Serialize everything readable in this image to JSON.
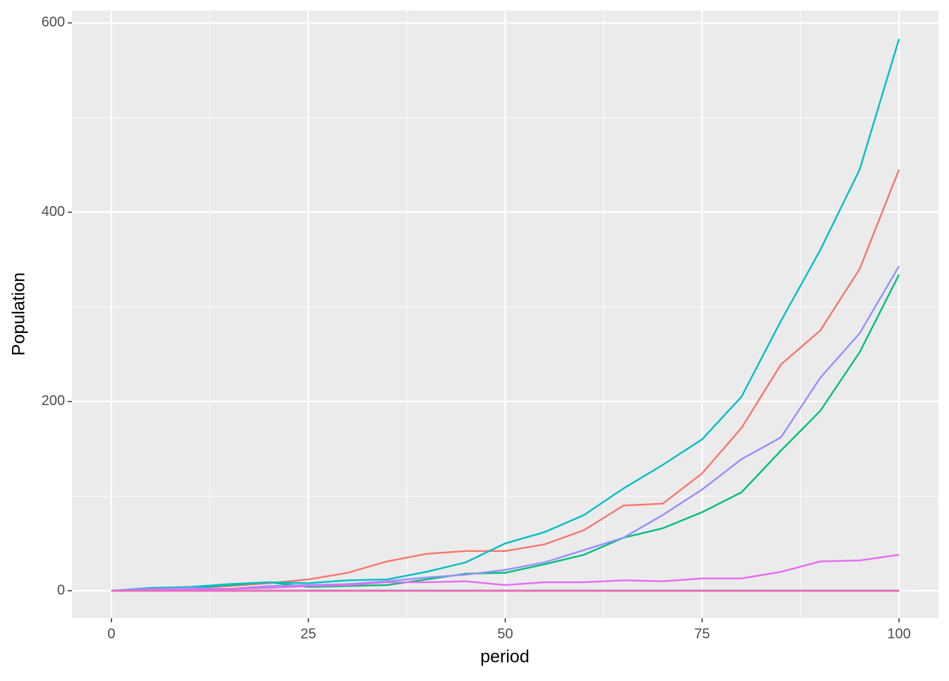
{
  "chart_data": {
    "type": "line",
    "x_label": "period",
    "y_label": "Population",
    "x": [
      0,
      5,
      10,
      15,
      20,
      25,
      30,
      35,
      40,
      45,
      50,
      55,
      60,
      65,
      70,
      75,
      80,
      85,
      90,
      95,
      100
    ],
    "series": [
      {
        "color": "#F8766D",
        "values": [
          0,
          2,
          3,
          5,
          8,
          12,
          19,
          31,
          39,
          42,
          42,
          49,
          64,
          90,
          92,
          124,
          172,
          239,
          275,
          340,
          445
        ]
      },
      {
        "color": "#D89000",
        "values": [
          0,
          0,
          0,
          0,
          0,
          0,
          0,
          0,
          0,
          0,
          0,
          0,
          0,
          0,
          0,
          0,
          0,
          0,
          0,
          0,
          0
        ]
      },
      {
        "color": "#A3A500",
        "values": [
          0,
          0,
          0,
          0,
          0,
          0,
          0,
          0,
          0,
          0,
          0,
          0,
          0,
          0,
          0,
          0,
          0,
          0,
          0,
          0,
          0
        ]
      },
      {
        "color": "#39B600",
        "values": [
          0,
          0,
          0,
          0,
          0,
          0,
          0,
          0,
          0,
          0,
          0,
          0,
          0,
          0,
          0,
          0,
          0,
          0,
          0,
          0,
          0
        ]
      },
      {
        "color": "#00BF7D",
        "values": [
          0,
          2,
          3,
          6,
          9,
          4,
          5,
          6,
          12,
          18,
          19,
          28,
          38,
          56,
          66,
          83,
          104,
          148,
          190,
          252,
          334
        ]
      },
      {
        "color": "#00BFC4",
        "values": [
          0,
          3,
          4,
          7,
          9,
          8,
          11,
          12,
          20,
          30,
          50,
          62,
          80,
          108,
          133,
          160,
          205,
          285,
          360,
          445,
          583
        ]
      },
      {
        "color": "#00B0F6",
        "values": [
          0,
          0,
          0,
          0,
          0,
          0,
          0,
          0,
          0,
          0,
          0,
          0,
          0,
          0,
          0,
          0,
          0,
          0,
          0,
          0,
          0
        ]
      },
      {
        "color": "#9590FF",
        "values": [
          0,
          2,
          3,
          2,
          5,
          6,
          7,
          10,
          14,
          17,
          22,
          30,
          43,
          56,
          80,
          107,
          139,
          162,
          225,
          272,
          343
        ]
      },
      {
        "color": "#E76BF3",
        "values": [
          0,
          1,
          1,
          2,
          3,
          5,
          6,
          9,
          9,
          10,
          6,
          9,
          9,
          11,
          10,
          13,
          13,
          20,
          31,
          32,
          38
        ]
      },
      {
        "color": "#FF62BC",
        "values": [
          0,
          0,
          0,
          0,
          0,
          0,
          0,
          0,
          0,
          0,
          0,
          0,
          0,
          0,
          0,
          0,
          0,
          0,
          0,
          0,
          0
        ]
      }
    ],
    "xlim": [
      -5,
      105
    ],
    "xticks": [
      0,
      25,
      50,
      75,
      100
    ],
    "x_minor_ticks": [
      12.5,
      37.5,
      62.5,
      87.5
    ],
    "ylim": [
      -29,
      613
    ],
    "yticks": [
      0,
      200,
      400,
      600
    ],
    "y_minor_ticks": [
      100,
      300,
      500
    ],
    "grid": true
  }
}
